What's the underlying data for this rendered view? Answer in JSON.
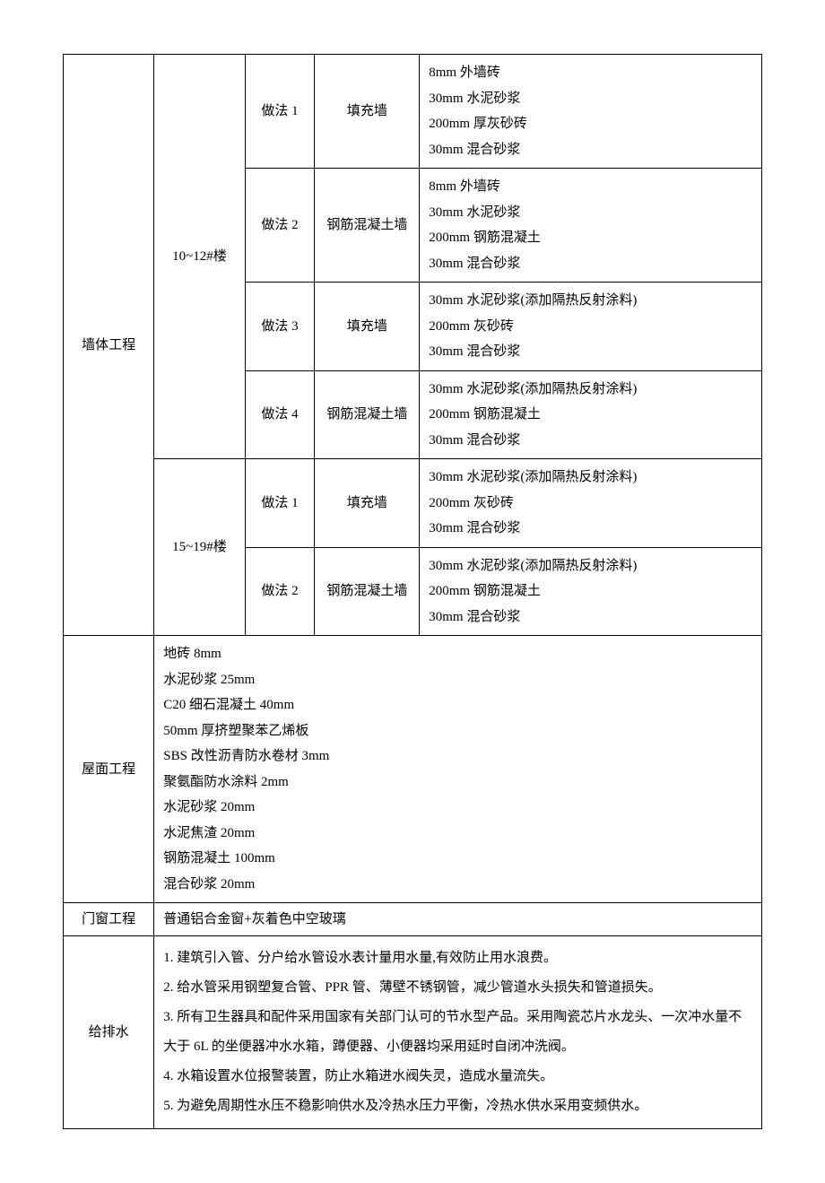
{
  "wall": {
    "category": "墙体工程",
    "groups": [
      {
        "building": "10~12#楼",
        "methods": [
          {
            "label": "做法 1",
            "type": "填充墙",
            "layers": [
              "8mm 外墙砖",
              "30mm 水泥砂浆",
              "200mm 厚灰砂砖",
              "30mm 混合砂浆"
            ]
          },
          {
            "label": "做法 2",
            "type": "钢筋混凝土墙",
            "layers": [
              "8mm 外墙砖",
              "30mm 水泥砂浆",
              "200mm 钢筋混凝土",
              "30mm 混合砂浆"
            ]
          },
          {
            "label": "做法 3",
            "type": "填充墙",
            "layers": [
              "30mm 水泥砂浆(添加隔热反射涂料)",
              "200mm 灰砂砖",
              "30mm 混合砂浆"
            ]
          },
          {
            "label": "做法 4",
            "type": "钢筋混凝土墙",
            "layers": [
              "30mm 水泥砂浆(添加隔热反射涂料)",
              "200mm 钢筋混凝土",
              "30mm 混合砂浆"
            ]
          }
        ]
      },
      {
        "building": "15~19#楼",
        "methods": [
          {
            "label": "做法 1",
            "type": "填充墙",
            "layers": [
              "30mm 水泥砂浆(添加隔热反射涂料)",
              "200mm 灰砂砖",
              "30mm 混合砂浆"
            ]
          },
          {
            "label": "做法 2",
            "type": "钢筋混凝土墙",
            "layers": [
              "30mm 水泥砂浆(添加隔热反射涂料)",
              "200mm 钢筋混凝土",
              "30mm 混合砂浆"
            ]
          }
        ]
      }
    ]
  },
  "roof": {
    "category": "屋面工程",
    "layers": [
      "地砖 8mm",
      "水泥砂浆 25mm",
      "C20 细石混凝土 40mm",
      "50mm 厚挤塑聚苯乙烯板",
      "SBS 改性沥青防水卷材 3mm",
      "聚氨酯防水涂料 2mm",
      "水泥砂浆 20mm",
      "水泥焦渣 20mm",
      "钢筋混凝土 100mm",
      "混合砂浆 20mm"
    ]
  },
  "windows": {
    "category": "门窗工程",
    "content": "普通铝合金窗+灰着色中空玻璃"
  },
  "plumbing": {
    "category": "给排水",
    "items": [
      "1. 建筑引入管、分户给水管设水表计量用水量,有效防止用水浪费。",
      "2. 给水管采用钢塑复合管、PPR 管、薄壁不锈钢管，减少管道水头损失和管道损失。",
      "3. 所有卫生器具和配件采用国家有关部门认可的节水型产品。采用陶瓷芯片水龙头、一次冲水量不大于 6L 的坐便器冲水水箱，蹲便器、小便器均采用延时自闭冲洗阀。",
      "4. 水箱设置水位报警装置，防止水箱进水阀失灵，造成水量流失。",
      "5. 为避免周期性水压不稳影响供水及冷热水压力平衡，冷热水供水采用变频供水。"
    ]
  }
}
